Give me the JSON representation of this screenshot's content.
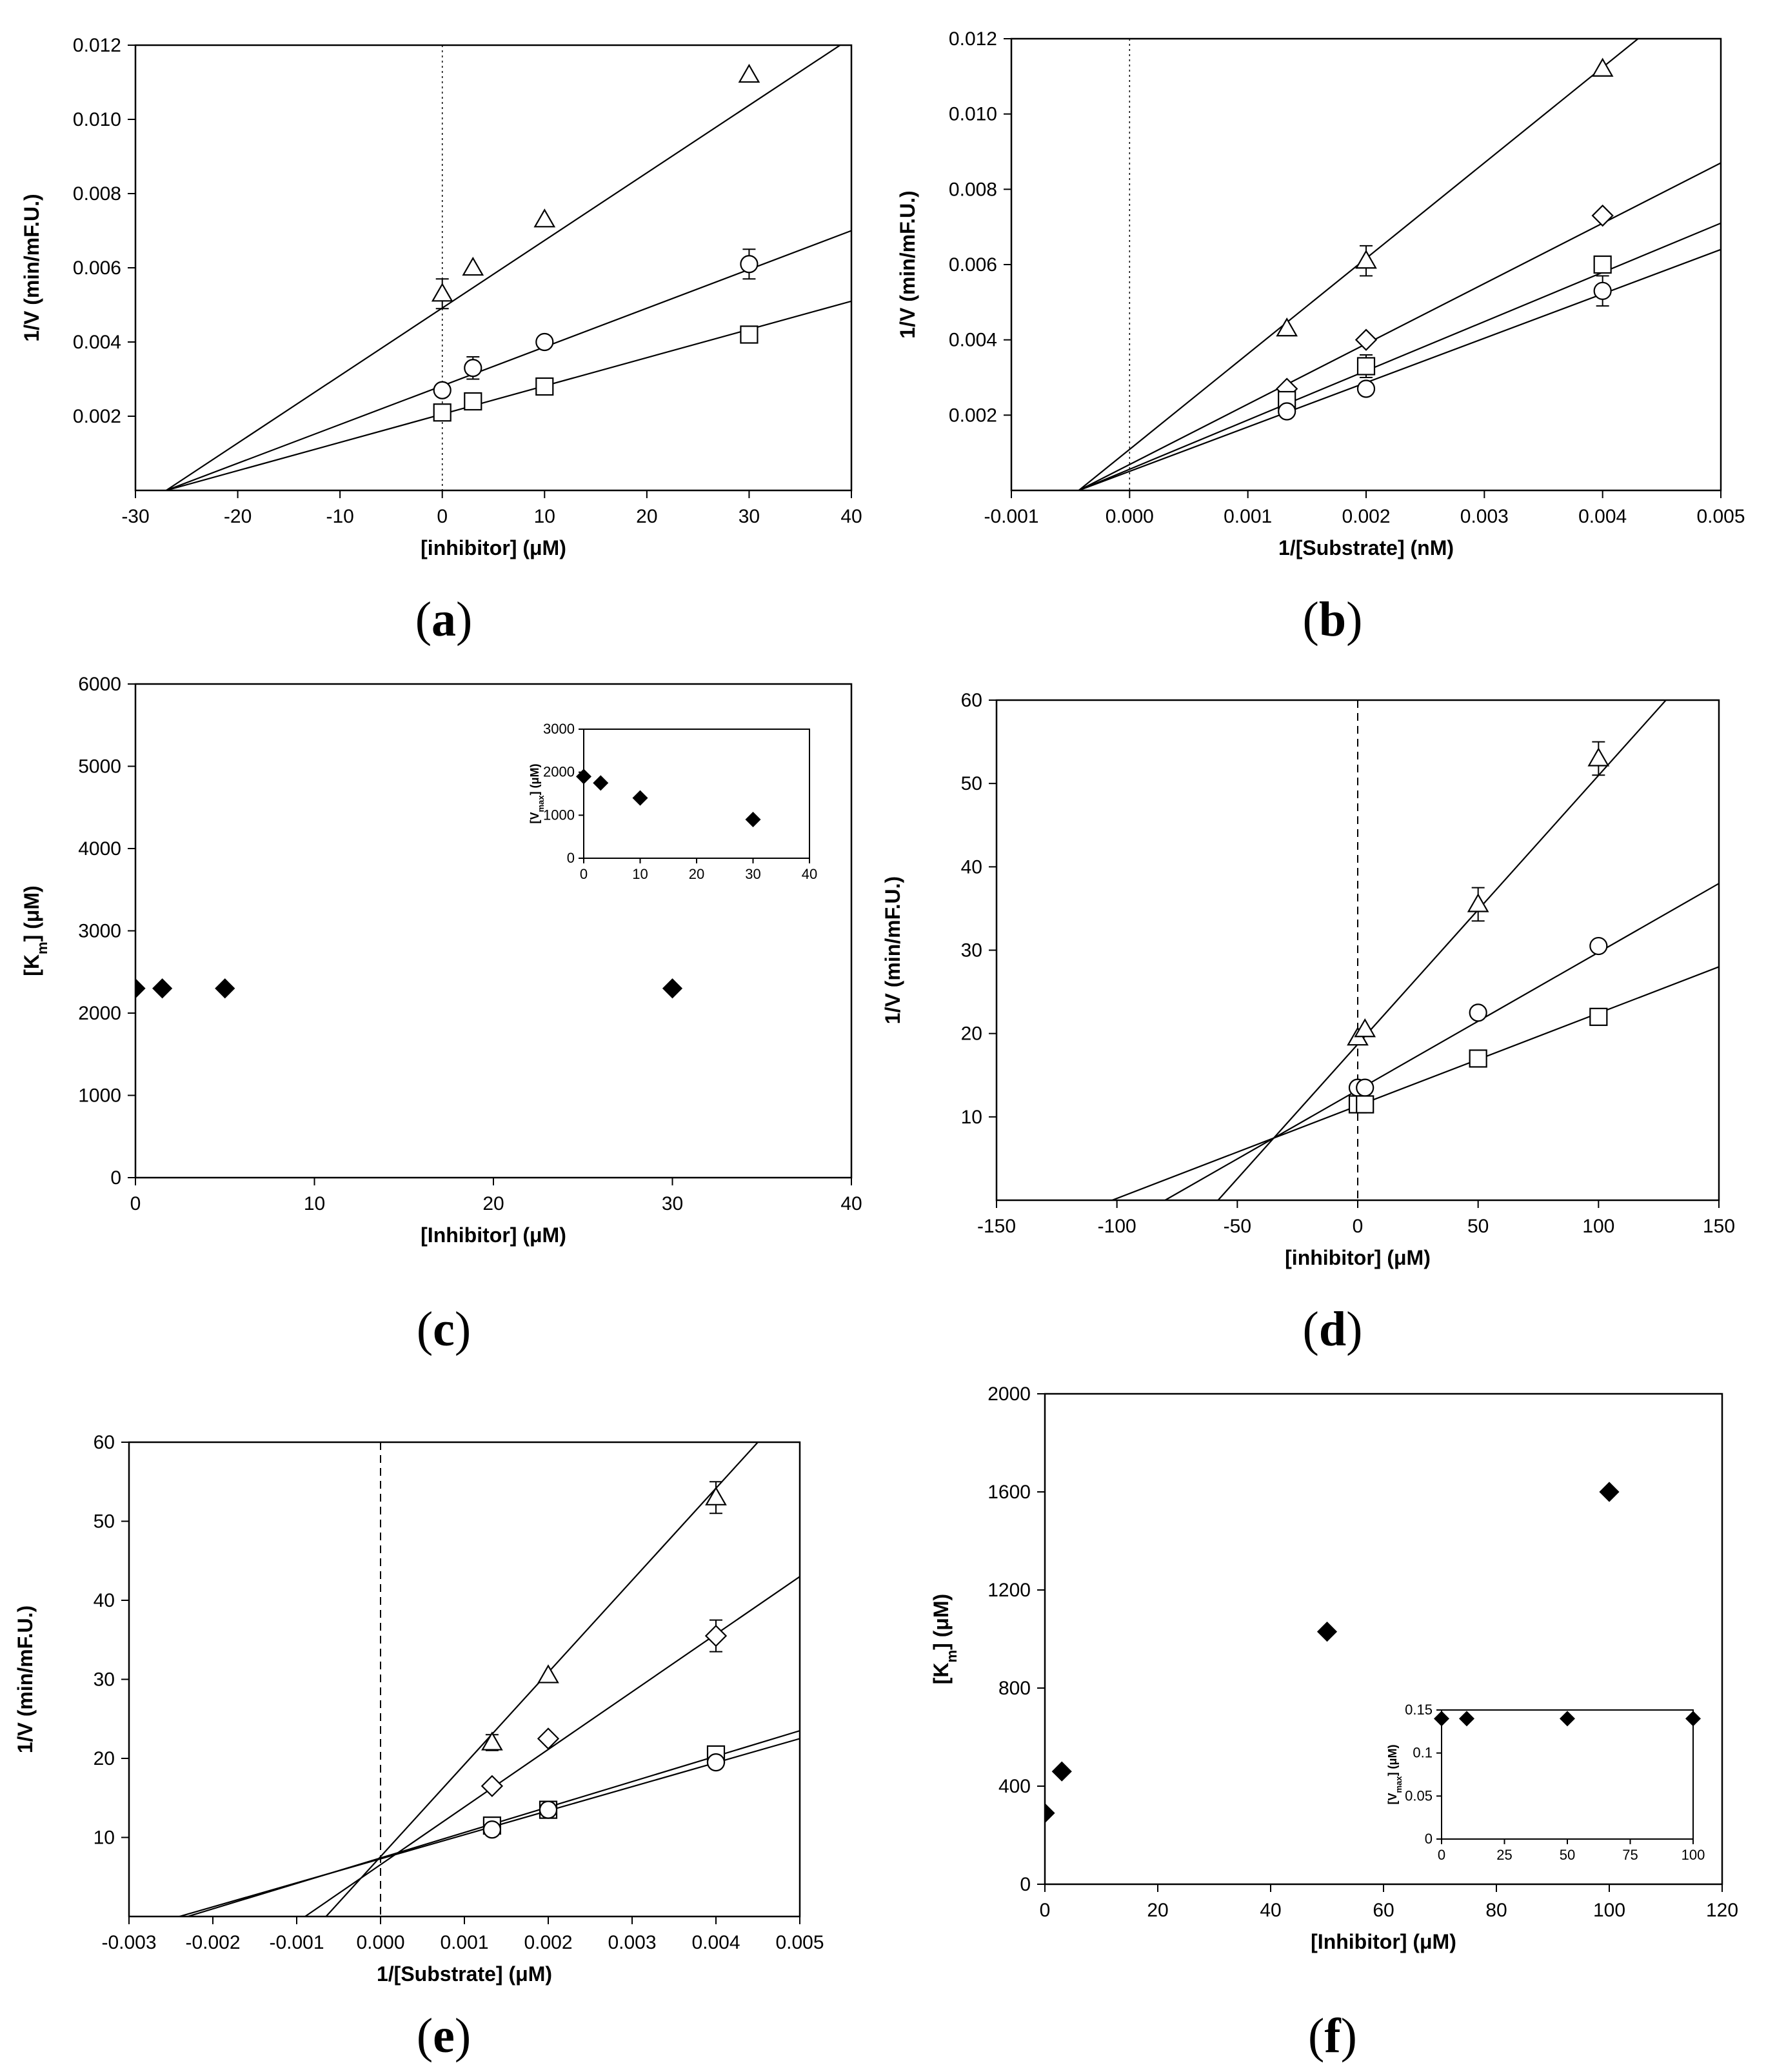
{
  "chart_data": [
    {
      "id": "a",
      "panel_label": "a",
      "type": "scatter",
      "xlabel": "[inhibitor] (μM)",
      "ylabel": "1/V (min/mF.U.)",
      "xlim": [
        -30,
        40
      ],
      "ylim": [
        0,
        0.012
      ],
      "xticks": [
        -30,
        -20,
        -10,
        0,
        10,
        20,
        30,
        40
      ],
      "xtick_labels": [
        "-30",
        "-20",
        "-10",
        "0",
        "10",
        "20",
        "30",
        "40"
      ],
      "yticks": [
        0.002,
        0.004,
        0.006,
        0.008,
        0.01,
        0.012
      ],
      "ytick_labels": [
        "0.002",
        "0.004",
        "0.006",
        "0.008",
        "0.010",
        "0.012"
      ],
      "zero_line": {
        "style": "dotted"
      },
      "series": [
        {
          "marker": "triangle",
          "points": [
            [
              0,
              0.0053
            ],
            [
              3,
              0.006
            ],
            [
              10,
              0.0073
            ],
            [
              30,
              0.0112
            ]
          ],
          "err": [
            0.0004,
            0,
            0,
            0
          ],
          "line": [
            [
              -27,
              0
            ],
            [
              40,
              0.0122
            ]
          ]
        },
        {
          "marker": "circle",
          "points": [
            [
              0,
              0.0027
            ],
            [
              3,
              0.0033
            ],
            [
              10,
              0.004
            ],
            [
              30,
              0.0061
            ]
          ],
          "err": [
            0,
            0.0003,
            0,
            0.0004
          ],
          "line": [
            [
              -27,
              0
            ],
            [
              40,
              0.007
            ]
          ]
        },
        {
          "marker": "square",
          "points": [
            [
              0,
              0.0021
            ],
            [
              3,
              0.0024
            ],
            [
              10,
              0.0028
            ],
            [
              30,
              0.0042
            ]
          ],
          "err": [
            0,
            0,
            0,
            0
          ],
          "line": [
            [
              -27,
              0
            ],
            [
              40,
              0.0051
            ]
          ]
        }
      ]
    },
    {
      "id": "b",
      "panel_label": "b",
      "type": "scatter",
      "xlabel": "1/[Substrate] (nM)",
      "ylabel": "1/V (min/mF.U.)",
      "xlim": [
        -0.001,
        0.005
      ],
      "ylim": [
        0,
        0.012
      ],
      "xticks": [
        -0.001,
        0,
        0.001,
        0.002,
        0.003,
        0.004,
        0.005
      ],
      "xtick_labels": [
        "-0.001",
        "0.000",
        "0.001",
        "0.002",
        "0.003",
        "0.004",
        "0.005"
      ],
      "yticks": [
        0.002,
        0.004,
        0.006,
        0.008,
        0.01,
        0.012
      ],
      "ytick_labels": [
        "0.002",
        "0.004",
        "0.006",
        "0.008",
        "0.010",
        "0.012"
      ],
      "zero_line": {
        "style": "dotted"
      },
      "series": [
        {
          "marker": "triangle",
          "points": [
            [
              0.00133,
              0.0043
            ],
            [
              0.002,
              0.0061
            ],
            [
              0.004,
              0.0112
            ]
          ],
          "err": [
            0,
            0.0004,
            0
          ],
          "line": [
            [
              -0.00043,
              0
            ],
            [
              0.0043,
              0.012
            ]
          ]
        },
        {
          "marker": "diamond",
          "points": [
            [
              0.00133,
              0.0027
            ],
            [
              0.002,
              0.004
            ],
            [
              0.004,
              0.0073
            ]
          ],
          "err": [
            0,
            0,
            0
          ],
          "line": [
            [
              -0.00043,
              0
            ],
            [
              0.005,
              0.0087
            ]
          ]
        },
        {
          "marker": "square",
          "points": [
            [
              0.00133,
              0.0024
            ],
            [
              0.002,
              0.0033
            ],
            [
              0.004,
              0.006
            ]
          ],
          "err": [
            0,
            0.0003,
            0
          ],
          "line": [
            [
              -0.00043,
              0
            ],
            [
              0.005,
              0.0071
            ]
          ]
        },
        {
          "marker": "circle",
          "points": [
            [
              0.00133,
              0.0021
            ],
            [
              0.002,
              0.0027
            ],
            [
              0.004,
              0.0053
            ]
          ],
          "err": [
            0,
            0,
            0.0004
          ],
          "line": [
            [
              -0.00043,
              0
            ],
            [
              0.005,
              0.0064
            ]
          ]
        }
      ]
    },
    {
      "id": "c",
      "panel_label": "c",
      "type": "scatter",
      "xlabel": "[Inhibitor] (μM)",
      "ylabel": "[Km] (μM)",
      "ylabel_sub": "m",
      "xlim": [
        0,
        40
      ],
      "ylim": [
        0,
        6000
      ],
      "xticks": [
        0,
        10,
        20,
        30,
        40
      ],
      "xtick_labels": [
        "0",
        "10",
        "20",
        "30",
        "40"
      ],
      "yticks": [
        0,
        1000,
        2000,
        3000,
        4000,
        5000,
        6000
      ],
      "ytick_labels": [
        "0",
        "1000",
        "2000",
        "3000",
        "4000",
        "5000",
        "6000"
      ],
      "series": [
        {
          "marker": "filled-diamond",
          "points": [
            [
              0,
              2300
            ],
            [
              1.5,
              2300
            ],
            [
              5,
              2300
            ],
            [
              30,
              2300
            ]
          ]
        }
      ],
      "inset": {
        "ylabel": "[Vmax] (μM)",
        "ylabel_sub": "max",
        "xlim": [
          0,
          40
        ],
        "ylim": [
          0,
          3000
        ],
        "xticks": [
          0,
          10,
          20,
          30,
          40
        ],
        "xtick_labels": [
          "0",
          "10",
          "20",
          "30",
          "40"
        ],
        "yticks": [
          0,
          1000,
          2000,
          3000
        ],
        "ytick_labels": [
          "0",
          "1000",
          "2000",
          "3000"
        ],
        "series": [
          {
            "marker": "filled-diamond",
            "points": [
              [
                0,
                1900
              ],
              [
                3,
                1750
              ],
              [
                10,
                1400
              ],
              [
                30,
                900
              ]
            ]
          }
        ]
      }
    },
    {
      "id": "d",
      "panel_label": "d",
      "type": "scatter",
      "xlabel": "[inhibitor] (μM)",
      "ylabel": "1/V (min/mF.U.)",
      "xlim": [
        -150,
        150
      ],
      "ylim": [
        0,
        60
      ],
      "xticks": [
        -150,
        -100,
        -50,
        0,
        50,
        100,
        150
      ],
      "xtick_labels": [
        "-150",
        "-100",
        "-50",
        "0",
        "50",
        "100",
        "150"
      ],
      "yticks": [
        10,
        20,
        30,
        40,
        50,
        60
      ],
      "ytick_labels": [
        "10",
        "20",
        "30",
        "40",
        "50",
        "60"
      ],
      "zero_line": {
        "style": "dashed"
      },
      "series": [
        {
          "marker": "triangle",
          "points": [
            [
              0,
              19.5
            ],
            [
              3,
              20.5
            ],
            [
              50,
              35.5
            ],
            [
              100,
              53
            ]
          ],
          "err": [
            0,
            0,
            2,
            2
          ],
          "line": [
            [
              -58,
              0
            ],
            [
              128,
              60
            ]
          ]
        },
        {
          "marker": "circle",
          "points": [
            [
              0,
              13.5
            ],
            [
              3,
              13.5
            ],
            [
              50,
              22.5
            ],
            [
              100,
              30.5
            ]
          ],
          "err": [
            0,
            0,
            0,
            0
          ],
          "line": [
            [
              -80,
              0
            ],
            [
              150,
              38
            ]
          ]
        },
        {
          "marker": "square",
          "points": [
            [
              0,
              11.5
            ],
            [
              3,
              11.5
            ],
            [
              50,
              17
            ],
            [
              100,
              22
            ]
          ],
          "err": [
            0,
            0,
            0,
            0
          ],
          "line": [
            [
              -102,
              0
            ],
            [
              150,
              28
            ]
          ]
        }
      ]
    },
    {
      "id": "e",
      "panel_label": "e",
      "type": "scatter",
      "xlabel": "1/[Substrate] (μM)",
      "ylabel": "1/V (min/mF.U.)",
      "xlim": [
        -0.003,
        0.005
      ],
      "ylim": [
        0,
        60
      ],
      "xticks": [
        -0.003,
        -0.002,
        -0.001,
        0,
        0.001,
        0.002,
        0.003,
        0.004,
        0.005
      ],
      "xtick_labels": [
        "-0.003",
        "-0.002",
        "-0.001",
        "0.000",
        "0.001",
        "0.002",
        "0.003",
        "0.004",
        "0.005"
      ],
      "yticks": [
        10,
        20,
        30,
        40,
        50,
        60
      ],
      "ytick_labels": [
        "10",
        "20",
        "30",
        "40",
        "50",
        "60"
      ],
      "zero_line": {
        "style": "dashed"
      },
      "series": [
        {
          "marker": "triangle",
          "points": [
            [
              0.00133,
              22
            ],
            [
              0.002,
              30.5
            ],
            [
              0.004,
              53
            ]
          ],
          "err": [
            1,
            0,
            2
          ],
          "line": [
            [
              -0.00065,
              0
            ],
            [
              0.0045,
              60
            ]
          ]
        },
        {
          "marker": "diamond",
          "points": [
            [
              0.00133,
              16.5
            ],
            [
              0.002,
              22.5
            ],
            [
              0.004,
              35.5
            ]
          ],
          "err": [
            0,
            0,
            2
          ],
          "line": [
            [
              -0.0009,
              0
            ],
            [
              0.005,
              43
            ]
          ]
        },
        {
          "marker": "square",
          "points": [
            [
              0.00133,
              11.5
            ],
            [
              0.002,
              13.5
            ],
            [
              0.004,
              20.5
            ]
          ],
          "err": [
            0,
            0,
            0
          ],
          "line": [
            [
              -0.0023,
              0
            ],
            [
              0.005,
              23.5
            ]
          ]
        },
        {
          "marker": "circle",
          "points": [
            [
              0.00133,
              11
            ],
            [
              0.002,
              13.5
            ],
            [
              0.004,
              19.5
            ]
          ],
          "err": [
            0,
            0,
            0
          ],
          "line": [
            [
              -0.0024,
              0
            ],
            [
              0.005,
              22.5
            ]
          ]
        }
      ]
    },
    {
      "id": "f",
      "panel_label": "f",
      "type": "scatter",
      "xlabel": "[Inhibitor] (μM)",
      "ylabel": "[Km] (μM)",
      "ylabel_sub": "m",
      "xlim": [
        0,
        120
      ],
      "ylim": [
        0,
        2000
      ],
      "xticks": [
        0,
        20,
        40,
        60,
        80,
        100,
        120
      ],
      "xtick_labels": [
        "0",
        "20",
        "40",
        "60",
        "80",
        "100",
        "120"
      ],
      "yticks": [
        0,
        400,
        800,
        1200,
        1600,
        2000
      ],
      "ytick_labels": [
        "0",
        "400",
        "800",
        "1200",
        "1600",
        "2000"
      ],
      "series": [
        {
          "marker": "filled-diamond",
          "points": [
            [
              0,
              290
            ],
            [
              3,
              460
            ],
            [
              50,
              1030
            ],
            [
              100,
              1600
            ]
          ]
        }
      ],
      "inset": {
        "ylabel": "[Vmax] (μM)",
        "ylabel_sub": "max",
        "xlim": [
          0,
          100
        ],
        "ylim": [
          0,
          0.15
        ],
        "xticks": [
          0,
          25,
          50,
          75,
          100
        ],
        "xtick_labels": [
          "0",
          "25",
          "50",
          "75",
          "100"
        ],
        "yticks": [
          0,
          0.05,
          0.1,
          0.15
        ],
        "ytick_labels": [
          "0",
          "0.05",
          "0.1",
          "0.15"
        ],
        "series": [
          {
            "marker": "filled-diamond",
            "points": [
              [
                0,
                0.14
              ],
              [
                10,
                0.14
              ],
              [
                50,
                0.14
              ],
              [
                100,
                0.14
              ]
            ]
          }
        ]
      }
    }
  ]
}
